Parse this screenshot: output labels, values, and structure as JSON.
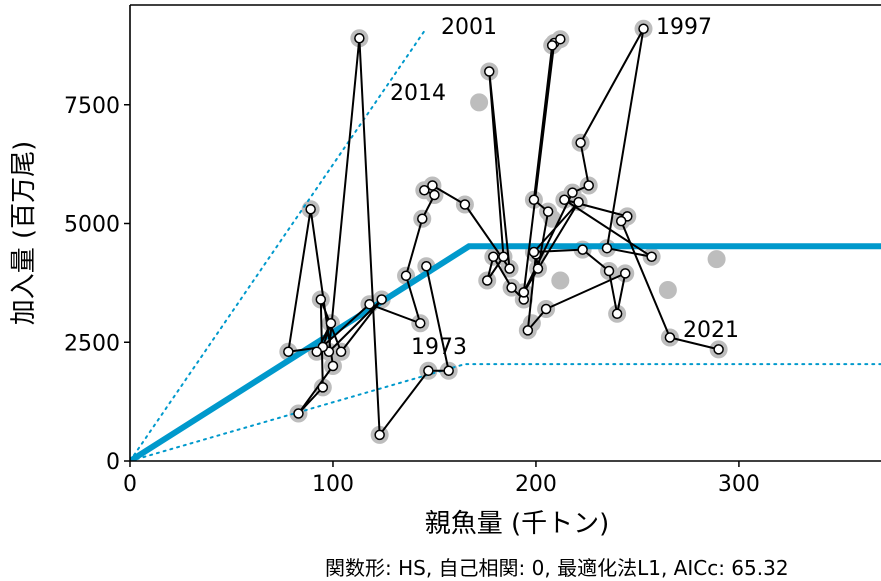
{
  "chart_data": {
    "type": "scatter",
    "xlabel": "親魚量 (千トン)",
    "ylabel": "加入量 (百万尾)",
    "xlim": [
      0,
      370
    ],
    "ylim": [
      0,
      9600
    ],
    "x_ticks": [
      "0",
      "100",
      "200",
      "300"
    ],
    "y_ticks": [
      "0",
      "2500",
      "5000",
      "7500"
    ],
    "grid": false,
    "footnote": "関数形: HS, 自己相関: 0, 最適化法L1, AICc: 65.32",
    "colors": {
      "fit_line": "#0099cc",
      "observed_gray": "#bdbdbd",
      "path": "#000000",
      "point_fill": "#ffffff"
    },
    "hockey_stick_fit": {
      "breakpoint_x": 167,
      "plateau_y": 4520
    },
    "upper_band": {
      "x": [
        0,
        145
      ],
      "y": [
        0,
        9050
      ]
    },
    "lower_band": {
      "breakpoint_x": 165,
      "plateau_y": 2040
    },
    "gray_only_points": [
      {
        "x": 172,
        "y": 7550
      },
      {
        "x": 208,
        "y": 5100
      },
      {
        "x": 212,
        "y": 3800
      },
      {
        "x": 198,
        "y": 2900
      },
      {
        "x": 265,
        "y": 3600
      },
      {
        "x": 289,
        "y": 4250
      }
    ],
    "series": [
      {
        "x": [
          146,
          157,
          147,
          123,
          113,
          98,
          124,
          104,
          94,
          95,
          83,
          100,
          89,
          78,
          95,
          99,
          92,
          118,
          143,
          136,
          144,
          150,
          145,
          149,
          165,
          187,
          177,
          184,
          176,
          179,
          188,
          194,
          194,
          209,
          212,
          208,
          199,
          206,
          201,
          200,
          196,
          205,
          244,
          240,
          236,
          223,
          199,
          221,
          194,
          218,
          226,
          222,
          253,
          235,
          257,
          214,
          245,
          242,
          266,
          290
        ],
        "y": [
          4100,
          1900,
          1900,
          550,
          8900,
          2300,
          3400,
          2300,
          3400,
          1550,
          1000,
          2000,
          5300,
          2300,
          2400,
          2900,
          2300,
          3300,
          2900,
          3900,
          5100,
          5600,
          5700,
          5800,
          5400,
          4050,
          8200,
          4300,
          3800,
          4300,
          3650,
          3400,
          3550,
          8800,
          8880,
          8750,
          5500,
          5250,
          4050,
          4350,
          2750,
          3200,
          3950,
          3100,
          4000,
          4450,
          4400,
          5450,
          3550,
          5650,
          5800,
          6700,
          9100,
          4480,
          4300,
          5500,
          5150,
          5050,
          2600,
          2350
        ]
      }
    ],
    "annotations": [
      "1973",
      "2001",
      "2014",
      "1997",
      "2021"
    ]
  }
}
